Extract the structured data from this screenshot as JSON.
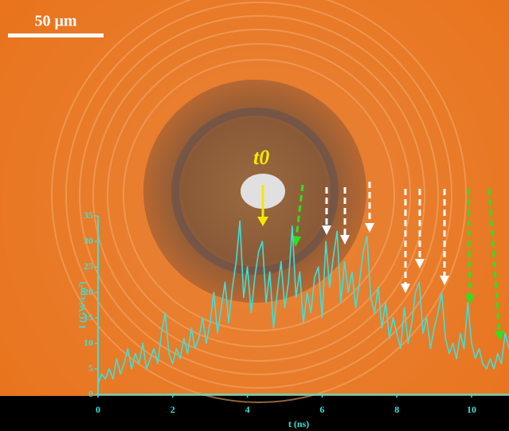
{
  "chart_data": {
    "type": "line",
    "scale_bar_label": "50 μm",
    "marker_label": "t0",
    "x_label": "t (ns)",
    "y_label": "I (GW/cm²)",
    "xlim": [
      0,
      11
    ],
    "xticks": [
      0,
      2,
      4,
      6,
      8,
      10
    ],
    "ylim": [
      0,
      35
    ],
    "yticks": [
      0,
      5,
      10,
      15,
      20,
      25,
      30,
      35
    ],
    "series": [
      {
        "color": "#3ee0d8",
        "x": [
          0,
          0.1,
          0.2,
          0.3,
          0.4,
          0.5,
          0.6,
          0.7,
          0.8,
          0.9,
          1,
          1.1,
          1.2,
          1.3,
          1.4,
          1.5,
          1.6,
          1.7,
          1.8,
          1.9,
          2,
          2.1,
          2.2,
          2.3,
          2.4,
          2.5,
          2.6,
          2.7,
          2.8,
          2.9,
          3,
          3.1,
          3.2,
          3.3,
          3.4,
          3.5,
          3.6,
          3.7,
          3.8,
          3.9,
          4,
          4.1,
          4.2,
          4.3,
          4.4,
          4.5,
          4.6,
          4.7,
          4.8,
          4.9,
          5,
          5.1,
          5.2,
          5.3,
          5.4,
          5.5,
          5.6,
          5.7,
          5.8,
          5.9,
          6,
          6.1,
          6.2,
          6.3,
          6.4,
          6.5,
          6.6,
          6.7,
          6.8,
          6.9,
          7,
          7.1,
          7.2,
          7.3,
          7.4,
          7.5,
          7.6,
          7.7,
          7.8,
          7.9,
          8,
          8.1,
          8.2,
          8.3,
          8.4,
          8.5,
          8.6,
          8.7,
          8.8,
          8.9,
          9,
          9.1,
          9.2,
          9.3,
          9.4,
          9.5,
          9.6,
          9.7,
          9.8,
          9.9,
          10,
          10.1,
          10.2,
          10.3,
          10.4,
          10.5,
          10.6,
          10.7,
          10.8,
          10.9,
          11
        ],
        "values": [
          2,
          4,
          3,
          5,
          3,
          7,
          4,
          6,
          9,
          5,
          8,
          6,
          10,
          5,
          7,
          9,
          6,
          12,
          16,
          8,
          6,
          9,
          7,
          11,
          8,
          13,
          9,
          11,
          15,
          10,
          14,
          20,
          12,
          17,
          22,
          14,
          21,
          26,
          34,
          19,
          25,
          16,
          23,
          28,
          30,
          18,
          24,
          13,
          20,
          26,
          17,
          22,
          33,
          19,
          24,
          14,
          20,
          16,
          23,
          25,
          15,
          30,
          21,
          27,
          32,
          18,
          26,
          20,
          24,
          17,
          22,
          28,
          31,
          19,
          16,
          21,
          13,
          18,
          11,
          15,
          12,
          9,
          17,
          10,
          14,
          20,
          22,
          12,
          15,
          9,
          13,
          16,
          20,
          11,
          8,
          10,
          7,
          12,
          9,
          18,
          10,
          7,
          9,
          6,
          5,
          7,
          5,
          8,
          6,
          12,
          9
        ]
      }
    ]
  }
}
